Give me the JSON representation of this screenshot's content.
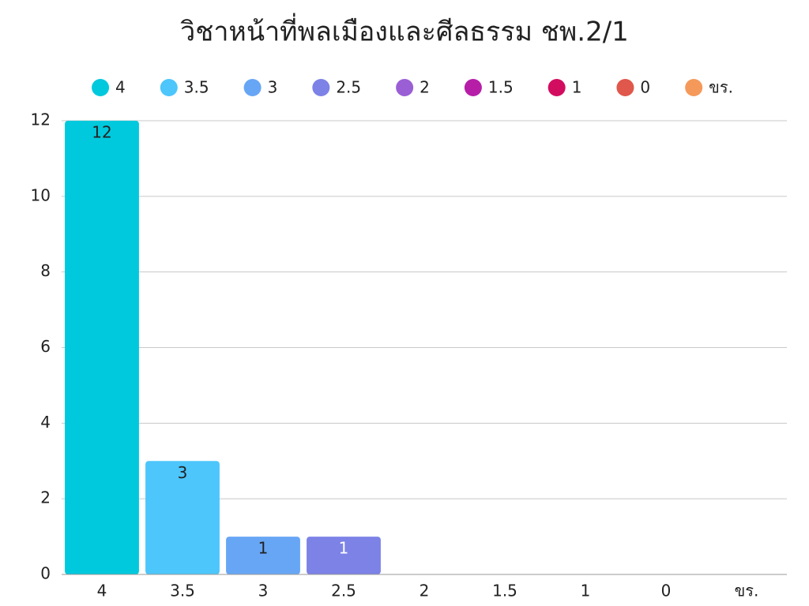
{
  "chart_data": {
    "type": "bar",
    "title": "วิชาหน้าที่พลเมืองและศีลธรรม ชพ.2/1",
    "categories": [
      "4",
      "3.5",
      "3",
      "2.5",
      "2",
      "1.5",
      "1",
      "0",
      "ขร."
    ],
    "values": [
      12,
      3,
      1,
      1,
      0,
      0,
      0,
      0,
      0
    ],
    "colors": [
      "#00c9dd",
      "#4cc6fb",
      "#67a6f5",
      "#7c82e6",
      "#9b5fd5",
      "#b61ea8",
      "#d20d60",
      "#e0574b",
      "#f5995a"
    ],
    "ylim": [
      0,
      12
    ],
    "yticks": [
      0,
      2,
      4,
      6,
      8,
      10,
      12
    ],
    "grid": true,
    "legend": "top"
  }
}
